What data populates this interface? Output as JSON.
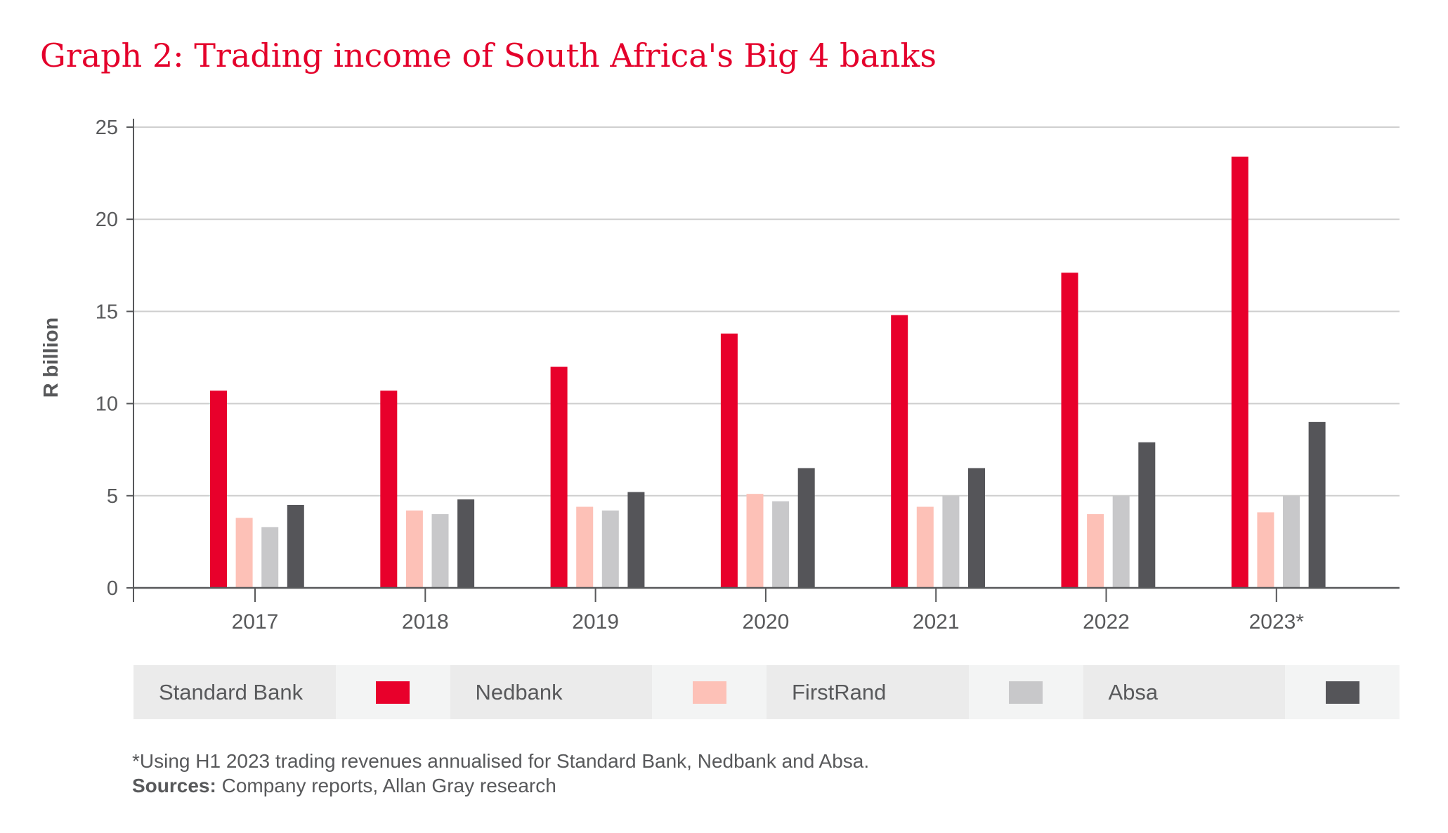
{
  "chart_data": {
    "type": "bar",
    "title": "Graph 2: Trading income of South Africa's Big 4 banks",
    "xlabel": "",
    "ylabel": "R billion",
    "ylim": [
      0,
      25
    ],
    "yticks": [
      0,
      5,
      10,
      15,
      20,
      25
    ],
    "grid": true,
    "legend_placement": "bottom",
    "categories": [
      "2017",
      "2018",
      "2019",
      "2020",
      "2021",
      "2022",
      "2023*"
    ],
    "series": [
      {
        "name": "Standard Bank",
        "color": "#e8002b",
        "values": [
          10.7,
          10.7,
          12.0,
          13.8,
          14.8,
          17.1,
          23.4
        ]
      },
      {
        "name": "Nedbank",
        "color": "#fdc1b7",
        "values": [
          3.8,
          4.2,
          4.4,
          5.1,
          4.4,
          4.0,
          4.1
        ]
      },
      {
        "name": "FirstRand",
        "color": "#c8c8ca",
        "values": [
          3.3,
          4.0,
          4.2,
          4.7,
          5.0,
          5.0,
          5.0
        ]
      },
      {
        "name": "Absa",
        "color": "#555559",
        "values": [
          4.5,
          4.8,
          5.2,
          6.5,
          6.5,
          7.9,
          9.0
        ]
      }
    ]
  },
  "footnote": "*Using H1 2023 trading revenues annualised for Standard Bank, Nedbank and Absa.",
  "sources_label": "Sources:",
  "sources_text": " Company reports, Allan Gray research"
}
